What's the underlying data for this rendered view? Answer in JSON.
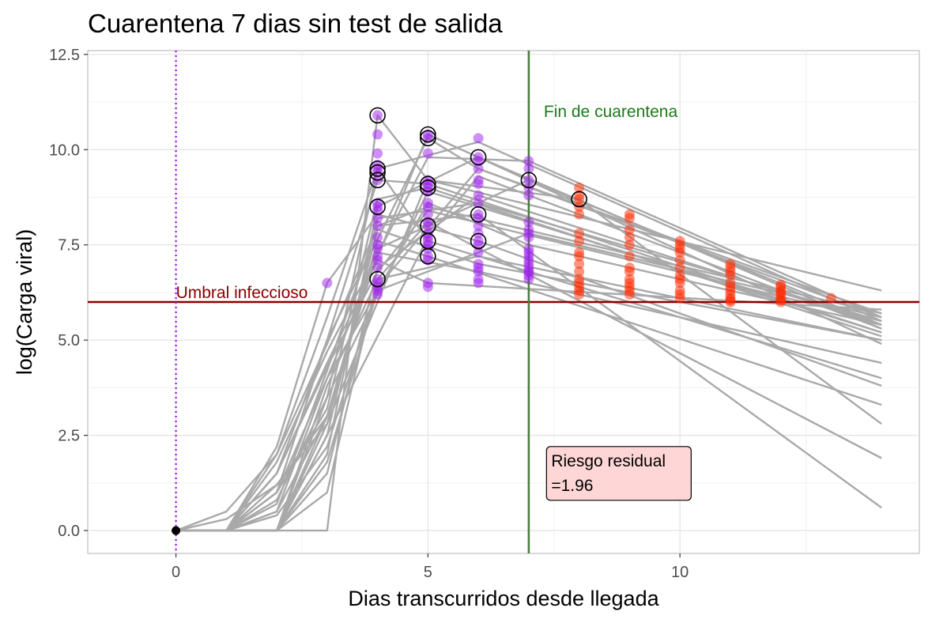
{
  "chart_data": {
    "type": "line",
    "title": "Cuarentena 7 dias sin test de salida",
    "xlabel": "Dias transcurridos desde llegada",
    "ylabel": "log(Carga viral)",
    "xlim": [
      -1.75,
      14.75
    ],
    "ylim": [
      -0.6,
      12.6
    ],
    "x_ticks": [
      0,
      5,
      10
    ],
    "x_tick_labels": [
      "0",
      "5",
      "10"
    ],
    "y_ticks": [
      0,
      2.5,
      5,
      7.5,
      10,
      12.5
    ],
    "y_tick_labels": [
      "0.0",
      "2.5",
      "5.0",
      "7.5",
      "10.0",
      "12.5"
    ],
    "grid": true,
    "colors": {
      "line": "#a9a9a9",
      "quarantine_point": "#a020f0",
      "post_point": "#ff2a00",
      "threshold": "#8b0000",
      "quarantine_end": "#4a7c3f",
      "arrival": "#a020f0",
      "label_fill": "#ffd6d6"
    },
    "threshold": {
      "y": 6,
      "label": "Umbral infeccioso"
    },
    "quarantine_end": {
      "x": 7,
      "label": "Fin de cuarentena"
    },
    "arrival": {
      "x": 0
    },
    "series": [
      {
        "x": [
          0,
          1,
          2,
          3,
          4,
          5,
          14
        ],
        "y": [
          0,
          0,
          0,
          0,
          10.9,
          9.2,
          6.3
        ]
      },
      {
        "x": [
          0,
          1,
          2,
          3,
          5,
          6,
          14
        ],
        "y": [
          0,
          0,
          0.5,
          4.0,
          10.4,
          9.8,
          4.9
        ]
      },
      {
        "x": [
          0,
          1,
          2,
          3,
          5,
          6,
          14
        ],
        "y": [
          0,
          0,
          1.0,
          5.0,
          10.3,
          9.5,
          5.7
        ]
      },
      {
        "x": [
          0,
          1,
          2,
          3,
          4,
          5,
          14
        ],
        "y": [
          0,
          0.5,
          2.0,
          5.6,
          9.5,
          7.6,
          4.0
        ]
      },
      {
        "x": [
          0,
          1,
          2,
          3,
          4,
          6,
          14
        ],
        "y": [
          0,
          0,
          0,
          3.5,
          9.5,
          10.2,
          5.5
        ]
      },
      {
        "x": [
          0,
          1,
          2,
          3,
          4,
          5,
          14
        ],
        "y": [
          0,
          0,
          1.5,
          5.0,
          9.2,
          9.1,
          5.2
        ]
      },
      {
        "x": [
          0,
          1,
          2,
          3,
          4,
          6,
          14
        ],
        "y": [
          0,
          0,
          0,
          2.0,
          8.5,
          9.8,
          5.3
        ]
      },
      {
        "x": [
          0,
          1,
          2,
          3,
          4,
          7,
          14
        ],
        "y": [
          0,
          0,
          0,
          3.0,
          7.4,
          9.2,
          5.4
        ]
      },
      {
        "x": [
          0,
          1,
          2,
          3,
          5,
          7,
          14
        ],
        "y": [
          0,
          0,
          1.8,
          4.7,
          9.8,
          9.7,
          5.6
        ]
      },
      {
        "x": [
          0,
          1,
          2,
          3,
          4,
          6,
          14
        ],
        "y": [
          0,
          0,
          2.2,
          6.5,
          8.3,
          7.6,
          3.8
        ]
      },
      {
        "x": [
          0,
          1,
          2,
          3,
          4,
          5,
          14
        ],
        "y": [
          0,
          0,
          0,
          3.8,
          6.6,
          8.1,
          1.9
        ]
      },
      {
        "x": [
          0,
          1,
          2,
          3,
          4,
          5,
          14
        ],
        "y": [
          0,
          0,
          1.0,
          3.2,
          8.7,
          9.0,
          5.1
        ]
      },
      {
        "x": [
          0,
          1,
          2,
          3,
          5,
          8,
          14
        ],
        "y": [
          0,
          0,
          0,
          2.8,
          9.2,
          8.7,
          2.8
        ]
      },
      {
        "x": [
          0,
          1,
          2,
          3,
          4,
          6,
          14
        ],
        "y": [
          0,
          0,
          0.7,
          4.2,
          8.0,
          8.3,
          0.6
        ]
      },
      {
        "x": [
          0,
          1,
          2,
          3,
          4,
          5,
          14
        ],
        "y": [
          0,
          0.3,
          1.2,
          3.0,
          7.6,
          7.2,
          3.3
        ]
      },
      {
        "x": [
          0,
          1,
          2,
          3,
          4,
          6,
          14
        ],
        "y": [
          0,
          0,
          0,
          2.5,
          8.2,
          8.6,
          5.5
        ]
      },
      {
        "x": [
          0,
          1,
          2,
          3,
          4,
          5,
          14
        ],
        "y": [
          0,
          0,
          1.5,
          4.4,
          7.1,
          6.5,
          5.8
        ]
      },
      {
        "x": [
          0,
          1,
          2,
          3,
          4,
          6,
          14
        ],
        "y": [
          0,
          0,
          0,
          1.5,
          6.9,
          8.8,
          5.4
        ]
      },
      {
        "x": [
          0,
          1,
          2,
          3,
          5,
          7,
          14
        ],
        "y": [
          0,
          0,
          0.8,
          3.5,
          8.9,
          8.1,
          5.2
        ]
      },
      {
        "x": [
          0,
          1,
          2,
          3,
          4,
          6,
          14
        ],
        "y": [
          0,
          0,
          1.2,
          2.8,
          7.9,
          7.0,
          5.0
        ]
      },
      {
        "x": [
          0,
          1,
          2,
          3,
          4,
          7,
          14
        ],
        "y": [
          0,
          0,
          0,
          1.8,
          6.3,
          7.8,
          5.6
        ]
      },
      {
        "x": [
          0,
          1,
          2,
          3,
          4,
          5,
          14
        ],
        "y": [
          0,
          0,
          2.0,
          4.9,
          8.0,
          8.5,
          5.7
        ]
      },
      {
        "x": [
          0,
          1,
          2,
          3,
          5,
          6,
          14
        ],
        "y": [
          0,
          0,
          0,
          2.5,
          7.7,
          9.3,
          5.3
        ]
      },
      {
        "x": [
          0,
          1,
          2,
          3,
          4,
          6,
          14
        ],
        "y": [
          0,
          0,
          0.5,
          3.0,
          7.3,
          6.8,
          4.4
        ]
      },
      {
        "x": [
          0,
          1,
          2,
          3,
          4,
          5,
          14
        ],
        "y": [
          0,
          0,
          1.5,
          4.3,
          6.8,
          8.4,
          5.5
        ]
      },
      {
        "x": [
          0,
          1,
          2,
          3,
          4,
          6,
          14
        ],
        "y": [
          0,
          0,
          0,
          1.0,
          6.6,
          7.2,
          5.0
        ]
      },
      {
        "x": [
          0,
          1,
          2,
          3,
          5,
          7,
          14
        ],
        "y": [
          0,
          0,
          1.0,
          4.0,
          8.6,
          7.5,
          5.4
        ]
      },
      {
        "x": [
          0,
          1,
          2,
          3,
          4,
          6,
          14
        ],
        "y": [
          0,
          0,
          0.4,
          2.2,
          6.4,
          9.5,
          5.6
        ]
      }
    ],
    "quarantine_points": {
      "x": [
        4,
        4,
        4,
        4,
        4,
        4,
        4,
        4,
        4,
        4,
        4,
        4,
        4,
        4,
        4,
        4,
        4,
        4,
        4,
        4,
        4,
        4,
        4,
        5,
        5,
        5,
        5,
        5,
        5,
        5,
        5,
        5,
        5,
        5,
        5,
        5,
        5,
        5,
        5,
        5,
        5,
        5,
        5,
        5,
        6,
        6,
        6,
        6,
        6,
        6,
        6,
        6,
        6,
        6,
        6,
        6,
        6,
        6,
        6,
        6,
        6,
        6,
        6,
        6,
        7,
        7,
        7,
        7,
        7,
        7,
        7,
        7,
        7,
        7,
        7,
        7,
        7,
        7,
        7,
        7,
        7,
        7,
        7
      ],
      "y": [
        10.9,
        10.4,
        9.9,
        9.6,
        9.5,
        9.4,
        9.2,
        8.6,
        8.5,
        8.4,
        8.2,
        8.0,
        7.7,
        7.5,
        7.4,
        7.2,
        7.1,
        6.9,
        6.6,
        6.5,
        6.4,
        6.3,
        6.2,
        10.4,
        10.3,
        9.9,
        9.2,
        9.1,
        9.0,
        8.9,
        8.6,
        8.5,
        8.3,
        8.1,
        8.0,
        7.8,
        7.7,
        7.6,
        7.5,
        7.4,
        7.2,
        7.1,
        6.5,
        6.4,
        10.3,
        9.8,
        9.7,
        9.5,
        9.2,
        9.1,
        8.8,
        8.6,
        8.3,
        8.2,
        8.0,
        7.8,
        7.6,
        7.5,
        7.3,
        7.0,
        6.9,
        6.8,
        6.6,
        6.5,
        9.7,
        9.5,
        9.2,
        9.0,
        8.8,
        8.1,
        7.9,
        7.8,
        7.7,
        7.4,
        7.3,
        7.2,
        7.1,
        7.0,
        6.9,
        6.8,
        6.7,
        6.6,
        6.8
      ]
    },
    "post_points": {
      "x": [
        8,
        8,
        8,
        8,
        8,
        8,
        8,
        8,
        8,
        8,
        8,
        8,
        8,
        8,
        8,
        8,
        9,
        9,
        9,
        9,
        9,
        9,
        9,
        9,
        9,
        9,
        9,
        9,
        9,
        10,
        10,
        10,
        10,
        10,
        10,
        10,
        10,
        10,
        10,
        10,
        10,
        11,
        11,
        11,
        11,
        11,
        11,
        11,
        11,
        11,
        11,
        11,
        12,
        12,
        12,
        12,
        12,
        12,
        12,
        12,
        13
      ],
      "y": [
        9.0,
        8.8,
        8.7,
        8.5,
        8.3,
        7.8,
        7.6,
        7.3,
        7.2,
        7.0,
        6.8,
        6.6,
        6.5,
        6.4,
        6.3,
        6.2,
        8.3,
        8.2,
        7.9,
        7.7,
        7.5,
        7.2,
        6.9,
        6.8,
        6.6,
        6.5,
        6.4,
        6.3,
        6.2,
        7.6,
        7.5,
        7.4,
        7.3,
        7.1,
        6.9,
        6.7,
        6.6,
        6.5,
        6.3,
        6.2,
        6.1,
        7.0,
        6.9,
        6.8,
        6.7,
        6.5,
        6.4,
        6.3,
        6.2,
        6.1,
        6.05,
        6.0,
        6.45,
        6.4,
        6.3,
        6.25,
        6.2,
        6.1,
        6.05,
        6.0,
        6.1
      ]
    },
    "highlighted_points": {
      "x": [
        4,
        4,
        4,
        4,
        4,
        4,
        5,
        5,
        5,
        5,
        5,
        5,
        5,
        6,
        6,
        6,
        7,
        8
      ],
      "y": [
        10.9,
        9.5,
        9.2,
        8.5,
        6.6,
        9.4,
        10.4,
        10.3,
        9.1,
        9.0,
        8.0,
        7.6,
        7.2,
        9.8,
        8.3,
        7.6,
        9.2,
        8.7
      ]
    },
    "origin_point": {
      "x": 0,
      "y": 0
    },
    "extra_points": {
      "x": [
        3
      ],
      "y": [
        6.5
      ]
    },
    "annotation": {
      "line1": "Riesgo residual",
      "line2": "=1.96",
      "x": 8.45,
      "y": 1.5
    }
  }
}
